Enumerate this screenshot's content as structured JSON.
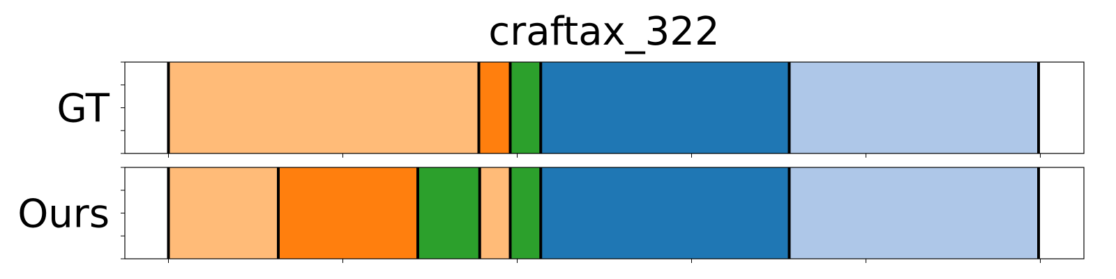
{
  "chart_data": {
    "type": "segmentation-timeline",
    "title": "craftax_322",
    "x_range": [
      0,
      100
    ],
    "y_tick_count": 5,
    "x_tick_positions": [
      5,
      25,
      45,
      65,
      85,
      105
    ],
    "colors": {
      "light_orange": "#ffbb78",
      "orange": "#ff7f0e",
      "green": "#2ca02c",
      "blue": "#1f77b4",
      "light_blue": "#aec7e8",
      "boundary": "#000000"
    },
    "rows": [
      {
        "label": "GT",
        "segments": [
          {
            "start": 5.0,
            "end": 40.6,
            "color": "light_orange"
          },
          {
            "start": 40.6,
            "end": 44.2,
            "color": "orange"
          },
          {
            "start": 44.2,
            "end": 47.7,
            "color": "green"
          },
          {
            "start": 47.7,
            "end": 76.2,
            "color": "blue"
          },
          {
            "start": 76.2,
            "end": 104.8,
            "color": "light_blue"
          }
        ]
      },
      {
        "label": "Ours",
        "segments": [
          {
            "start": 5.0,
            "end": 17.6,
            "color": "light_orange"
          },
          {
            "start": 17.6,
            "end": 33.6,
            "color": "orange"
          },
          {
            "start": 33.6,
            "end": 40.7,
            "color": "green"
          },
          {
            "start": 40.7,
            "end": 44.2,
            "color": "light_orange"
          },
          {
            "start": 44.2,
            "end": 47.7,
            "color": "green"
          },
          {
            "start": 47.7,
            "end": 76.2,
            "color": "blue"
          },
          {
            "start": 76.2,
            "end": 104.8,
            "color": "light_blue"
          }
        ]
      }
    ]
  }
}
